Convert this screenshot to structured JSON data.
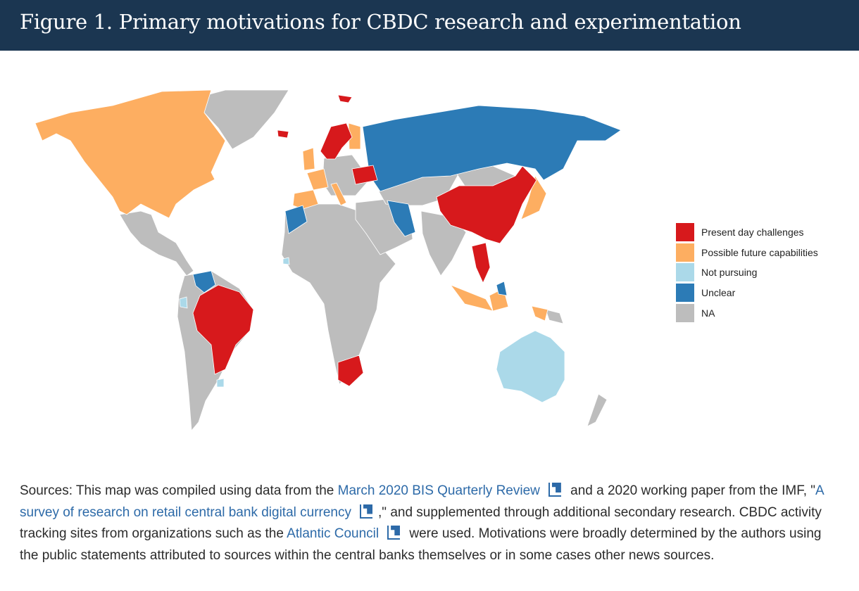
{
  "header": {
    "title": "Figure 1. Primary motivations for CBDC research and experimentation"
  },
  "legend": [
    {
      "label": "Present day challenges",
      "color": "#d7191c"
    },
    {
      "label": "Possible future capabilities",
      "color": "#fdae61"
    },
    {
      "label": "Not pursuing",
      "color": "#abd9e9"
    },
    {
      "label": "Unclear",
      "color": "#2c7bb6"
    },
    {
      "label": "NA",
      "color": "#bdbdbd"
    }
  ],
  "sources": {
    "t1": "Sources: This map was compiled using data from the ",
    "link1": "March 2020 BIS Quarterly Review",
    "t2": " and a 2020 working paper from the IMF, \"",
    "link2": "A survey of research on retail central bank digital currency",
    "t3": ",\" and supplemented through additional secondary research. CBDC activity tracking sites from organizations such as the ",
    "link3": "Atlantic Council",
    "t4": " were used. Motivations were broadly determined by the authors using the public statements attributed to sources within the central banks themselves or in some cases other news sources."
  }
}
